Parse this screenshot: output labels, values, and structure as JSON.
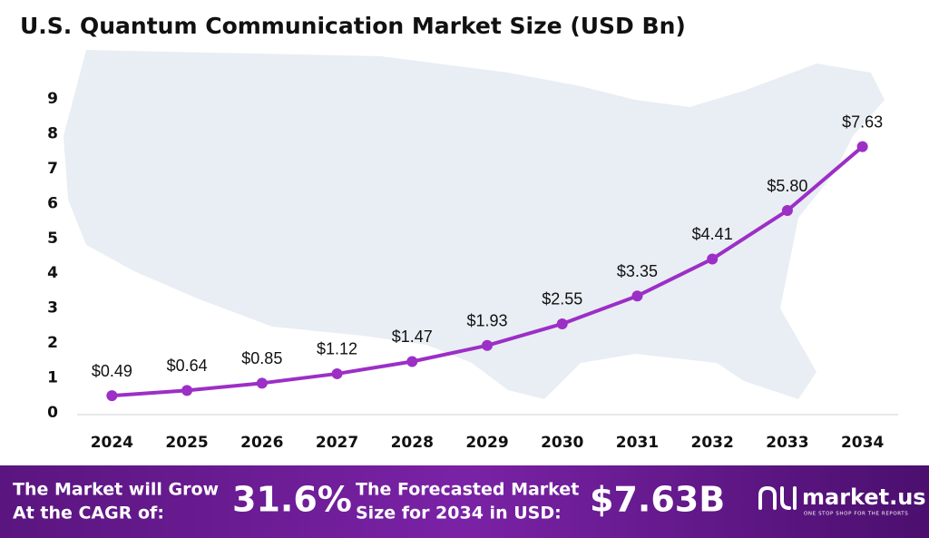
{
  "chart_data": {
    "type": "line",
    "title": "U.S. Quantum Communication Market Size (USD Bn)",
    "categories": [
      "2024",
      "2025",
      "2026",
      "2027",
      "2028",
      "2029",
      "2030",
      "2031",
      "2032",
      "2033",
      "2034"
    ],
    "values": [
      0.49,
      0.64,
      0.85,
      1.12,
      1.47,
      1.93,
      2.55,
      3.35,
      4.41,
      5.8,
      7.63
    ],
    "value_labels": [
      "$0.49",
      "$0.64",
      "$0.85",
      "$1.12",
      "$1.47",
      "$1.93",
      "$2.55",
      "$3.35",
      "$4.41",
      "$5.80",
      "$7.63"
    ],
    "color": "#9c2fc6",
    "ylim": [
      0,
      9
    ],
    "yticks": [
      0,
      1,
      2,
      3,
      4,
      5,
      6,
      7,
      8,
      9
    ],
    "grid": false
  },
  "footer": {
    "cagr_text_1": "The Market will Grow",
    "cagr_text_2": "At the CAGR of:",
    "cagr": "31.6%",
    "forecast_text_1": "The Forecasted Market",
    "forecast_text_2": "Size for 2034 in USD:",
    "forecast": "$7.63B",
    "brand": "market.us",
    "tagline": "ONE STOP SHOP FOR THE REPORTS"
  }
}
